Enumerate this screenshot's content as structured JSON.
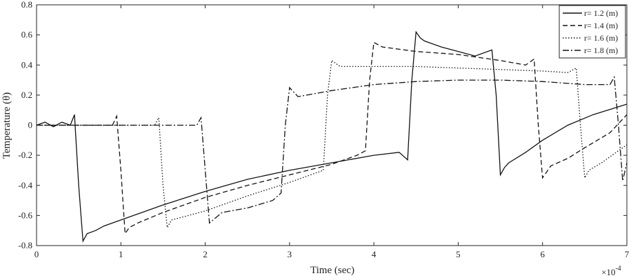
{
  "chart_data": {
    "type": "line",
    "xlabel": "Time (sec)",
    "ylabel": "Temperature (θ)",
    "x_multiplier_label": "×10",
    "x_multiplier_exponent": "-4",
    "xlim": [
      0,
      7
    ],
    "ylim": [
      -0.8,
      0.8
    ],
    "xticks": [
      0,
      1,
      2,
      3,
      4,
      5,
      6,
      7
    ],
    "yticks": [
      -0.8,
      -0.6,
      -0.4,
      -0.2,
      0,
      0.2,
      0.4,
      0.6,
      0.8
    ],
    "grid": false,
    "legend_position": "top-right",
    "series": [
      {
        "name": "r= 1.2 (m)",
        "style": "solid",
        "color": "#111111",
        "x": [
          0,
          0.1,
          0.2,
          0.3,
          0.4,
          0.45,
          0.5,
          0.55,
          0.6,
          0.7,
          0.8,
          1.0,
          1.5,
          2.0,
          2.5,
          3.0,
          3.5,
          4.0,
          4.3,
          4.4,
          4.45,
          4.5,
          4.55,
          4.6,
          4.8,
          5.0,
          5.2,
          5.4,
          5.45,
          5.5,
          5.55,
          5.6,
          5.8,
          6.0,
          6.3,
          6.6,
          7.0
        ],
        "y": [
          0,
          0.02,
          -0.01,
          0.02,
          0.0,
          0.07,
          -0.4,
          -0.77,
          -0.72,
          -0.7,
          -0.67,
          -0.63,
          -0.53,
          -0.44,
          -0.36,
          -0.3,
          -0.25,
          -0.2,
          -0.18,
          -0.23,
          0.3,
          0.62,
          0.58,
          0.56,
          0.52,
          0.49,
          0.46,
          0.5,
          0.2,
          -0.33,
          -0.28,
          -0.25,
          -0.18,
          -0.1,
          0.0,
          0.07,
          0.14
        ]
      },
      {
        "name": "r= 1.4 (m)",
        "style": "dashed",
        "color": "#111111",
        "x": [
          0,
          0.5,
          0.9,
          0.95,
          1.0,
          1.05,
          1.1,
          1.2,
          1.5,
          2.0,
          2.5,
          3.0,
          3.5,
          3.8,
          3.9,
          3.95,
          4.0,
          4.1,
          4.5,
          5.0,
          5.5,
          5.8,
          5.9,
          5.95,
          6.0,
          6.1,
          6.3,
          6.5,
          6.8,
          7.0
        ],
        "y": [
          0,
          0.0,
          0.0,
          0.06,
          -0.3,
          -0.72,
          -0.68,
          -0.65,
          -0.58,
          -0.48,
          -0.4,
          -0.33,
          -0.26,
          -0.2,
          -0.17,
          0.3,
          0.55,
          0.52,
          0.49,
          0.47,
          0.43,
          0.4,
          0.44,
          0.0,
          -0.35,
          -0.27,
          -0.22,
          -0.15,
          -0.05,
          0.07
        ]
      },
      {
        "name": "r= 1.6 (m)",
        "style": "dotted",
        "color": "#111111",
        "x": [
          0,
          0.5,
          1.0,
          1.4,
          1.45,
          1.5,
          1.55,
          1.6,
          1.8,
          2.0,
          2.5,
          3.0,
          3.3,
          3.4,
          3.45,
          3.5,
          3.6,
          4.0,
          4.5,
          5.0,
          5.5,
          6.0,
          6.3,
          6.4,
          6.45,
          6.5,
          6.55,
          6.7,
          7.0
        ],
        "y": [
          0,
          0.0,
          0.0,
          0.0,
          0.05,
          -0.4,
          -0.68,
          -0.63,
          -0.6,
          -0.57,
          -0.47,
          -0.38,
          -0.32,
          -0.3,
          0.2,
          0.43,
          0.39,
          0.39,
          0.39,
          0.38,
          0.37,
          0.36,
          0.35,
          0.38,
          0.0,
          -0.35,
          -0.3,
          -0.25,
          -0.13
        ]
      },
      {
        "name": "r= 1.8 (m)",
        "style": "dashdot",
        "color": "#111111",
        "x": [
          0,
          0.5,
          1.0,
          1.5,
          1.9,
          1.95,
          2.0,
          2.05,
          2.2,
          2.5,
          2.8,
          2.9,
          2.95,
          3.0,
          3.1,
          3.5,
          4.0,
          4.5,
          5.0,
          5.5,
          6.0,
          6.5,
          6.8,
          6.85,
          6.9,
          6.95,
          7.0
        ],
        "y": [
          0,
          0.0,
          0.0,
          0.0,
          0.0,
          0.05,
          -0.3,
          -0.65,
          -0.58,
          -0.55,
          -0.5,
          -0.45,
          0.0,
          0.25,
          0.19,
          0.23,
          0.27,
          0.29,
          0.3,
          0.3,
          0.29,
          0.27,
          0.27,
          0.32,
          0.0,
          -0.37,
          -0.25
        ]
      }
    ]
  }
}
